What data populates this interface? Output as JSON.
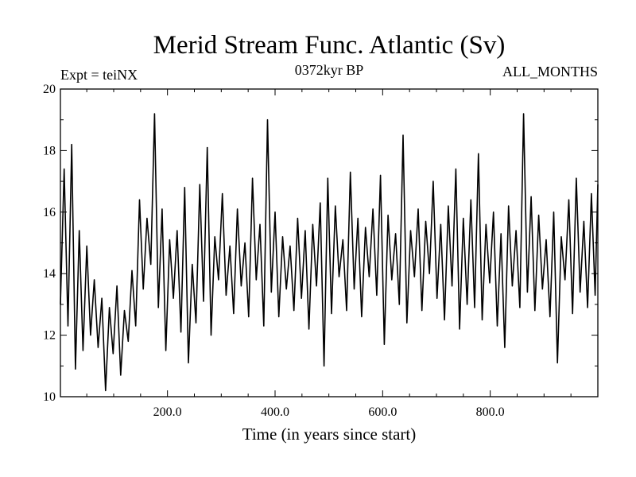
{
  "chart_data": {
    "type": "line",
    "title": "Merid Stream Func. Atlantic (Sv)",
    "subtitle_left": "Expt = teiNX",
    "subtitle_center": "0372kyr BP",
    "subtitle_right": "ALL_MONTHS",
    "xlabel": "Time (in years since start)",
    "ylabel": "",
    "xlim": [
      1,
      1000
    ],
    "ylim": [
      10,
      20
    ],
    "xticks": [
      200,
      400,
      600,
      800
    ],
    "xtick_labels": [
      "200.0",
      "400.0",
      "600.0",
      "800.0"
    ],
    "yticks": [
      10,
      12,
      14,
      16,
      18,
      20
    ],
    "ytick_labels": [
      "10",
      "12",
      "14",
      "16",
      "18",
      "20"
    ],
    "grid": false,
    "line_color": "#000000",
    "series": [
      {
        "x": [
          1,
          8,
          15,
          22,
          29,
          36,
          43,
          50,
          57,
          64,
          71,
          78,
          85,
          92,
          99,
          106,
          113,
          120,
          127,
          134,
          141,
          148,
          155,
          162,
          169,
          176,
          183,
          190,
          197,
          204,
          211,
          218,
          225,
          232,
          239,
          246,
          253,
          260,
          267,
          274,
          281,
          288,
          295,
          302,
          309,
          316,
          323,
          330,
          337,
          344,
          351,
          358,
          365,
          372,
          379,
          386,
          393,
          400,
          407,
          414,
          421,
          428,
          435,
          442,
          449,
          456,
          463,
          470,
          477,
          484,
          491,
          498,
          505,
          512,
          519,
          526,
          533,
          540,
          547,
          554,
          561,
          568,
          575,
          582,
          589,
          596,
          603,
          610,
          617,
          624,
          631,
          638,
          645,
          652,
          659,
          666,
          673,
          680,
          687,
          694,
          701,
          708,
          715,
          722,
          729,
          736,
          743,
          750,
          757,
          764,
          771,
          778,
          785,
          792,
          799,
          806,
          813,
          820,
          827,
          834,
          841,
          848,
          855,
          862,
          869,
          876,
          883,
          890,
          897,
          904,
          911,
          918,
          925,
          932,
          939,
          946,
          953,
          960,
          967,
          974,
          981,
          988,
          995,
          1000
        ],
        "y": [
          13.0,
          17.4,
          12.3,
          18.2,
          10.9,
          15.4,
          11.5,
          14.9,
          12.0,
          13.8,
          11.6,
          13.2,
          10.2,
          12.9,
          11.4,
          13.6,
          10.7,
          12.8,
          11.8,
          14.1,
          12.3,
          16.4,
          13.5,
          15.8,
          14.3,
          19.2,
          12.9,
          16.1,
          11.5,
          15.1,
          13.2,
          15.4,
          12.1,
          16.8,
          11.1,
          14.3,
          12.4,
          16.9,
          13.1,
          18.1,
          12.0,
          15.2,
          13.8,
          16.6,
          13.3,
          14.9,
          12.7,
          16.1,
          13.6,
          15.0,
          12.6,
          17.1,
          13.8,
          15.6,
          12.3,
          19.0,
          13.4,
          16.0,
          12.6,
          15.2,
          13.5,
          14.9,
          12.8,
          15.8,
          13.2,
          15.4,
          12.2,
          15.6,
          13.6,
          16.3,
          11.0,
          17.1,
          12.7,
          16.2,
          13.9,
          15.1,
          12.8,
          17.3,
          13.5,
          15.8,
          12.6,
          15.5,
          13.9,
          16.1,
          13.3,
          17.2,
          11.7,
          15.9,
          13.8,
          15.3,
          13.0,
          18.5,
          12.4,
          15.4,
          13.9,
          16.1,
          12.8,
          15.7,
          14.0,
          17.0,
          13.2,
          15.6,
          12.5,
          16.2,
          13.6,
          17.4,
          12.2,
          15.8,
          13.0,
          16.4,
          12.9,
          17.9,
          12.5,
          15.6,
          13.7,
          16.0,
          12.3,
          15.3,
          11.6,
          16.2,
          13.6,
          15.4,
          12.9,
          19.2,
          13.4,
          16.5,
          12.8,
          15.9,
          13.5,
          15.1,
          12.6,
          16.0,
          11.1,
          15.2,
          13.8,
          16.4,
          12.7,
          17.1,
          13.4,
          15.7,
          12.9,
          16.6,
          13.3,
          16.9
        ]
      }
    ]
  }
}
